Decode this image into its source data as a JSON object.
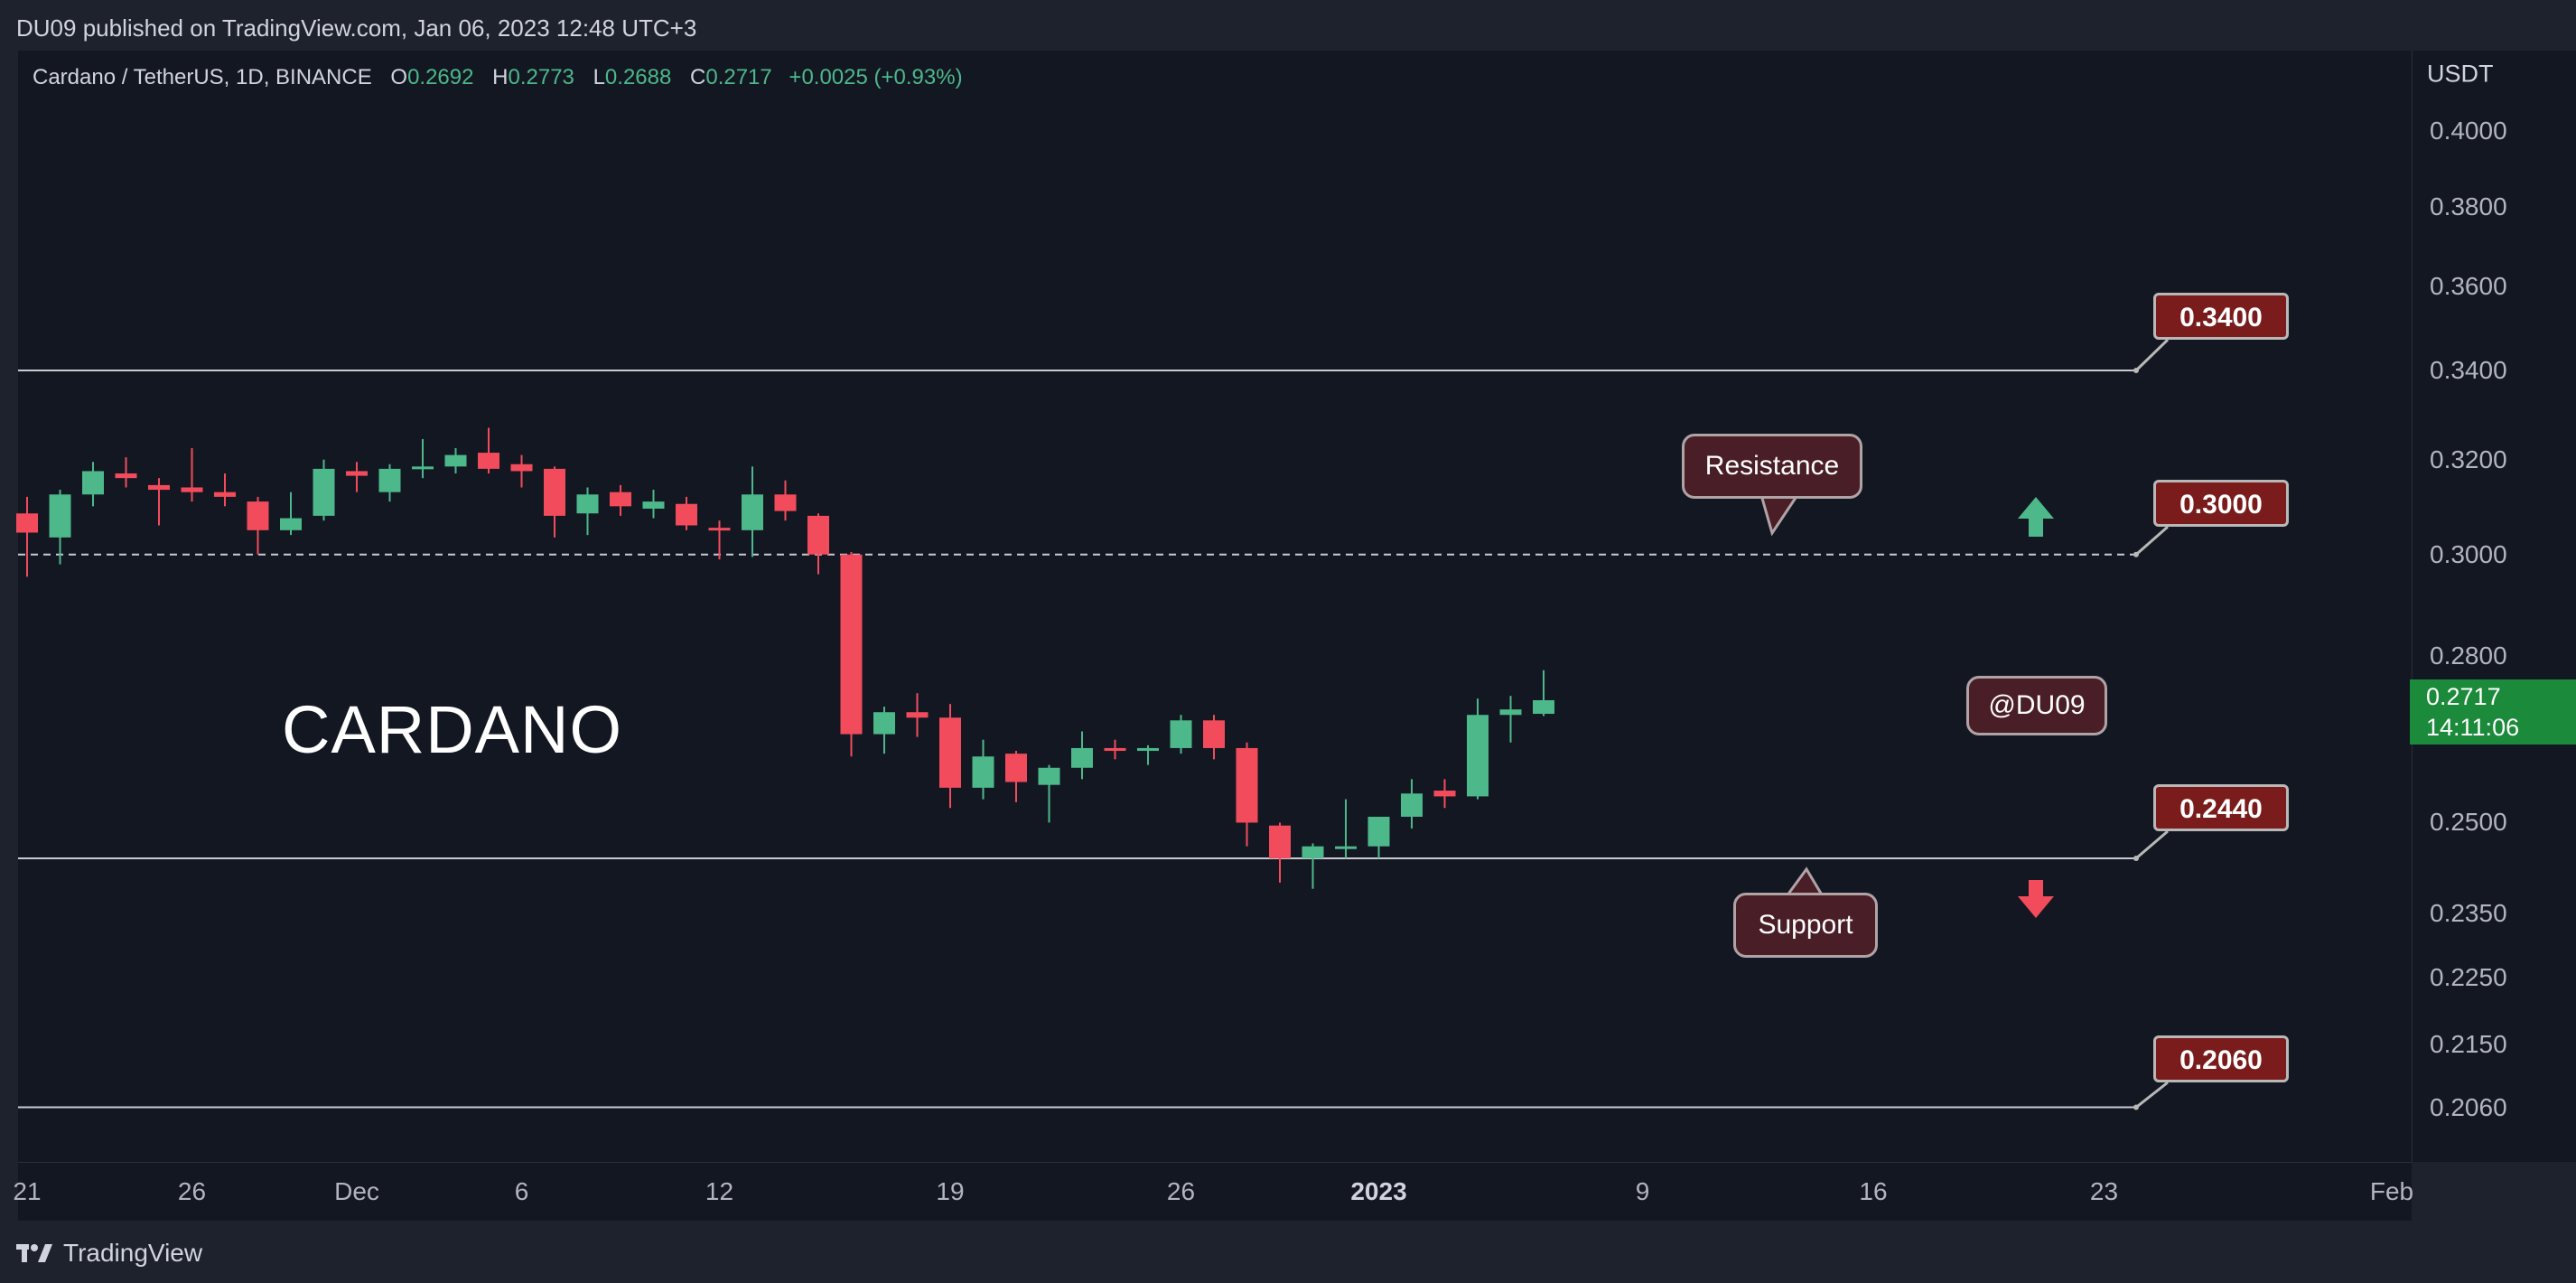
{
  "header": {
    "published": "DU09 published on TradingView.com, Jan 06, 2023 12:48 UTC+3"
  },
  "legend": {
    "symbol": "Cardano / TetherUS, 1D, BINANCE",
    "o_label": "O",
    "o": "0.2692",
    "h_label": "H",
    "h": "0.2773",
    "l_label": "L",
    "l": "0.2688",
    "c_label": "C",
    "c": "0.2717",
    "change": "+0.0025 (+0.93%)"
  },
  "y_axis": {
    "unit": "USDT",
    "ticks": [
      "0.4000",
      "0.3800",
      "0.3600",
      "0.3400",
      "0.3200",
      "0.3000",
      "0.2800",
      "0.2500",
      "0.2350",
      "0.2250",
      "0.2150",
      "0.2060"
    ],
    "current_price": "0.2717",
    "countdown": "14:11:06",
    "current_color": "#1b8a3a"
  },
  "x_axis": {
    "ticks": [
      "21",
      "26",
      "Dec",
      "6",
      "12",
      "19",
      "26",
      "2023",
      "9",
      "16",
      "23",
      "Feb"
    ]
  },
  "annotations": {
    "title": "CARDANO",
    "watermark": "@DU09",
    "resistance": "Resistance",
    "support": "Support",
    "levels": [
      "0.3400",
      "0.3000",
      "0.2440",
      "0.2060"
    ]
  },
  "footer": {
    "brand": "TradingView"
  },
  "colors": {
    "up": "#4db88a",
    "down": "#f24c5c",
    "background": "#131722",
    "level_label": "#7a1c1c"
  },
  "chart_data": {
    "type": "candlestick",
    "pair": "Cardano / TetherUS",
    "timeframe": "1D",
    "exchange": "BINANCE",
    "candles": [
      {
        "date": "2022-11-21",
        "o": 0.3085,
        "h": 0.312,
        "l": 0.2955,
        "c": 0.3045
      },
      {
        "date": "2022-11-22",
        "o": 0.3035,
        "h": 0.3135,
        "l": 0.298,
        "c": 0.3125
      },
      {
        "date": "2022-11-23",
        "o": 0.3125,
        "h": 0.3195,
        "l": 0.31,
        "c": 0.3175
      },
      {
        "date": "2022-11-24",
        "o": 0.317,
        "h": 0.3205,
        "l": 0.314,
        "c": 0.316
      },
      {
        "date": "2022-11-25",
        "o": 0.3145,
        "h": 0.316,
        "l": 0.306,
        "c": 0.3135
      },
      {
        "date": "2022-11-26",
        "o": 0.314,
        "h": 0.3225,
        "l": 0.311,
        "c": 0.313
      },
      {
        "date": "2022-11-27",
        "o": 0.313,
        "h": 0.317,
        "l": 0.31,
        "c": 0.312
      },
      {
        "date": "2022-11-28",
        "o": 0.311,
        "h": 0.312,
        "l": 0.3,
        "c": 0.305
      },
      {
        "date": "2022-11-29",
        "o": 0.305,
        "h": 0.313,
        "l": 0.304,
        "c": 0.3075
      },
      {
        "date": "2022-11-30",
        "o": 0.308,
        "h": 0.32,
        "l": 0.307,
        "c": 0.318
      },
      {
        "date": "2022-12-01",
        "o": 0.3175,
        "h": 0.3195,
        "l": 0.313,
        "c": 0.3165
      },
      {
        "date": "2022-12-02",
        "o": 0.313,
        "h": 0.319,
        "l": 0.311,
        "c": 0.318
      },
      {
        "date": "2022-12-03",
        "o": 0.3185,
        "h": 0.3245,
        "l": 0.316,
        "c": 0.3185
      },
      {
        "date": "2022-12-04",
        "o": 0.3185,
        "h": 0.3225,
        "l": 0.317,
        "c": 0.321
      },
      {
        "date": "2022-12-05",
        "o": 0.3215,
        "h": 0.327,
        "l": 0.317,
        "c": 0.318
      },
      {
        "date": "2022-12-06",
        "o": 0.319,
        "h": 0.321,
        "l": 0.314,
        "c": 0.3175
      },
      {
        "date": "2022-12-07",
        "o": 0.318,
        "h": 0.3185,
        "l": 0.3035,
        "c": 0.308
      },
      {
        "date": "2022-12-08",
        "o": 0.3085,
        "h": 0.314,
        "l": 0.304,
        "c": 0.3125
      },
      {
        "date": "2022-12-09",
        "o": 0.313,
        "h": 0.3145,
        "l": 0.308,
        "c": 0.31
      },
      {
        "date": "2022-12-10",
        "o": 0.3095,
        "h": 0.3135,
        "l": 0.3075,
        "c": 0.311
      },
      {
        "date": "2022-12-11",
        "o": 0.3105,
        "h": 0.312,
        "l": 0.305,
        "c": 0.306
      },
      {
        "date": "2022-12-12",
        "o": 0.3055,
        "h": 0.307,
        "l": 0.299,
        "c": 0.305
      },
      {
        "date": "2022-12-13",
        "o": 0.305,
        "h": 0.3185,
        "l": 0.2995,
        "c": 0.3125
      },
      {
        "date": "2022-12-14",
        "o": 0.3125,
        "h": 0.3155,
        "l": 0.307,
        "c": 0.309
      },
      {
        "date": "2022-12-15",
        "o": 0.308,
        "h": 0.3085,
        "l": 0.296,
        "c": 0.3
      },
      {
        "date": "2022-12-16",
        "o": 0.3,
        "h": 0.3005,
        "l": 0.2615,
        "c": 0.2655
      },
      {
        "date": "2022-12-17",
        "o": 0.2655,
        "h": 0.2705,
        "l": 0.262,
        "c": 0.2695
      },
      {
        "date": "2022-12-18",
        "o": 0.2695,
        "h": 0.273,
        "l": 0.265,
        "c": 0.2685
      },
      {
        "date": "2022-12-19",
        "o": 0.2685,
        "h": 0.271,
        "l": 0.2525,
        "c": 0.256
      },
      {
        "date": "2022-12-20",
        "o": 0.256,
        "h": 0.2645,
        "l": 0.254,
        "c": 0.2615
      },
      {
        "date": "2022-12-21",
        "o": 0.262,
        "h": 0.2625,
        "l": 0.2535,
        "c": 0.257
      },
      {
        "date": "2022-12-22",
        "o": 0.2565,
        "h": 0.26,
        "l": 0.25,
        "c": 0.2595
      },
      {
        "date": "2022-12-23",
        "o": 0.2595,
        "h": 0.266,
        "l": 0.2575,
        "c": 0.263
      },
      {
        "date": "2022-12-24",
        "o": 0.263,
        "h": 0.2645,
        "l": 0.261,
        "c": 0.2625
      },
      {
        "date": "2022-12-25",
        "o": 0.2625,
        "h": 0.2635,
        "l": 0.26,
        "c": 0.263
      },
      {
        "date": "2022-12-26",
        "o": 0.263,
        "h": 0.269,
        "l": 0.262,
        "c": 0.268
      },
      {
        "date": "2022-12-27",
        "o": 0.268,
        "h": 0.269,
        "l": 0.261,
        "c": 0.263
      },
      {
        "date": "2022-12-28",
        "o": 0.263,
        "h": 0.264,
        "l": 0.246,
        "c": 0.25
      },
      {
        "date": "2022-12-29",
        "o": 0.2495,
        "h": 0.25,
        "l": 0.24,
        "c": 0.244
      },
      {
        "date": "2022-12-30",
        "o": 0.244,
        "h": 0.2465,
        "l": 0.239,
        "c": 0.246
      },
      {
        "date": "2022-12-31",
        "o": 0.246,
        "h": 0.254,
        "l": 0.244,
        "c": 0.246
      },
      {
        "date": "2023-01-01",
        "o": 0.246,
        "h": 0.251,
        "l": 0.244,
        "c": 0.251
      },
      {
        "date": "2023-01-02",
        "o": 0.251,
        "h": 0.2575,
        "l": 0.249,
        "c": 0.255
      },
      {
        "date": "2023-01-03",
        "o": 0.2555,
        "h": 0.2575,
        "l": 0.2525,
        "c": 0.2545
      },
      {
        "date": "2023-01-04",
        "o": 0.2545,
        "h": 0.272,
        "l": 0.254,
        "c": 0.269
      },
      {
        "date": "2023-01-05",
        "o": 0.269,
        "h": 0.2725,
        "l": 0.264,
        "c": 0.27
      },
      {
        "date": "2023-01-06",
        "o": 0.2692,
        "h": 0.2773,
        "l": 0.2688,
        "c": 0.2717
      }
    ],
    "levels": [
      {
        "value": 0.34,
        "label": "0.3400",
        "style": "solid"
      },
      {
        "value": 0.3,
        "label": "0.3000",
        "style": "dashed"
      },
      {
        "value": 0.244,
        "label": "0.2440",
        "style": "solid"
      },
      {
        "value": 0.206,
        "label": "0.2060",
        "style": "solid"
      }
    ],
    "y_scale": "log",
    "y_unit": "USDT",
    "grid": false
  }
}
